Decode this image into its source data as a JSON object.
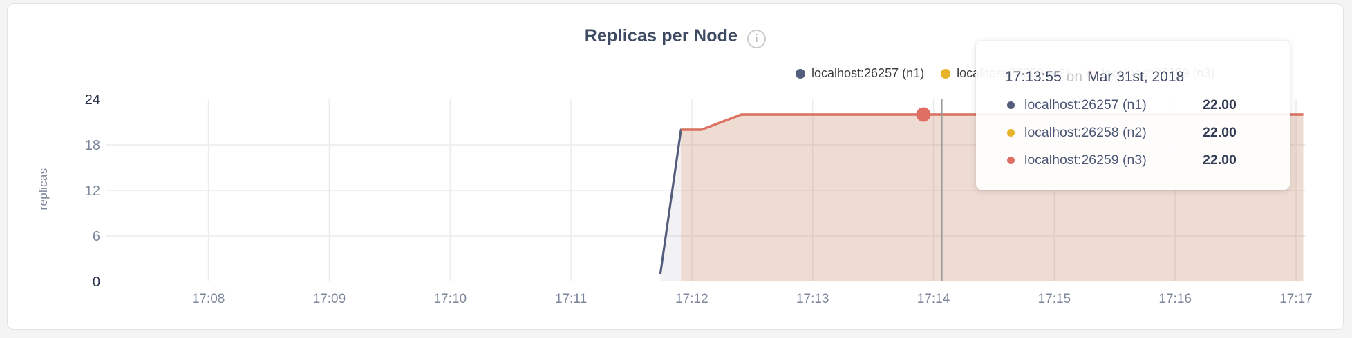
{
  "chart": {
    "title": "Replicas per Node",
    "info_icon": "i",
    "y_axis_label": "replicas",
    "legend": [
      {
        "label": "localhost:26257 (n1)",
        "color": "#545e7c"
      },
      {
        "label": "localhost:26258 (n2)",
        "color": "#e7b32a"
      },
      {
        "label": "localhost:26259 (n3)",
        "color": "#df6f65"
      }
    ]
  },
  "tooltip": {
    "time": "17:13:55",
    "connector": "on",
    "date": "Mar 31st, 2018",
    "rows": [
      {
        "label": "localhost:26257 (n1)",
        "value": "22.00",
        "color": "#545e7c"
      },
      {
        "label": "localhost:26258 (n2)",
        "value": "22.00",
        "color": "#e7b32a"
      },
      {
        "label": "localhost:26259 (n3)",
        "value": "22.00",
        "color": "#df6f65"
      }
    ]
  },
  "chart_data": {
    "type": "area",
    "title": "Replicas per Node",
    "xlabel": "",
    "ylabel": "replicas",
    "ylim": [
      0,
      24
    ],
    "yticks": [
      0,
      6,
      12,
      18,
      24
    ],
    "grid": true,
    "legend_position": "top-right",
    "x_axis": {
      "unit": "time HH:MM",
      "min_minute": 7.15,
      "max_minute": 17.08
    },
    "xticks": [
      {
        "label": "17:08",
        "minute": 8
      },
      {
        "label": "17:09",
        "minute": 9
      },
      {
        "label": "17:10",
        "minute": 10
      },
      {
        "label": "17:11",
        "minute": 11
      },
      {
        "label": "17:12",
        "minute": 12
      },
      {
        "label": "17:13",
        "minute": 13
      },
      {
        "label": "17:14",
        "minute": 14
      },
      {
        "label": "17:15",
        "minute": 15
      },
      {
        "label": "17:16",
        "minute": 16
      },
      {
        "label": "17:17",
        "minute": 17
      }
    ],
    "series": [
      {
        "name": "localhost:26257 (n1)",
        "color": "#545e7c",
        "fill_opacity": 0.08,
        "points": [
          {
            "minute": 11.74,
            "value": 1
          },
          {
            "minute": 11.91,
            "value": 20
          },
          {
            "minute": 12.08,
            "value": 20
          },
          {
            "minute": 12.41,
            "value": 22
          },
          {
            "minute": 17.06,
            "value": 22
          }
        ]
      },
      {
        "name": "localhost:26258 (n2)",
        "color": "#e7b32a",
        "fill_opacity": 0.08,
        "points": [
          {
            "minute": 11.91,
            "value": 20
          },
          {
            "minute": 12.08,
            "value": 20
          },
          {
            "minute": 12.41,
            "value": 22
          },
          {
            "minute": 17.06,
            "value": 22
          }
        ]
      },
      {
        "name": "localhost:26259 (n3)",
        "color": "#df6f65",
        "fill_opacity": 0.13,
        "points": [
          {
            "minute": 11.91,
            "value": 20
          },
          {
            "minute": 12.08,
            "value": 20
          },
          {
            "minute": 12.41,
            "value": 22
          },
          {
            "minute": 17.06,
            "value": 22
          }
        ]
      }
    ],
    "hover": {
      "time": "17:13:55",
      "date": "Mar 31st, 2018",
      "highlight_series": "localhost:26259 (n3)",
      "highlight_point": {
        "minute": 13.9167,
        "value": 22
      },
      "crosshair_minute": 14.07,
      "values": [
        22,
        22,
        22
      ]
    },
    "colors": {
      "gridline": "#ececec",
      "crosshair": "#9b9b9b"
    }
  }
}
